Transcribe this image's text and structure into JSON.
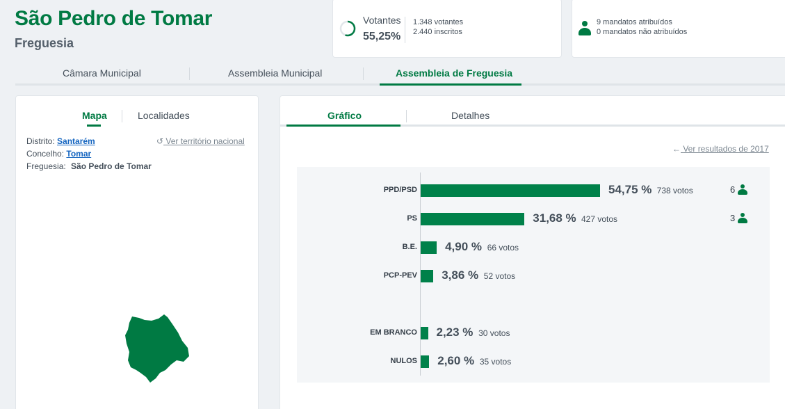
{
  "header": {
    "title": "São Pedro de Tomar",
    "subtitle": "Freguesia"
  },
  "votes": {
    "label": "Votantes",
    "percent": "55,25%",
    "voters": "1.348 votantes",
    "registered": "2.440 inscritos",
    "ring_fraction": 0.5525
  },
  "mandates": {
    "assigned": "9 mandatos atribuídos",
    "unassigned": "0 mandatos não atribuídos"
  },
  "tabs": [
    "Câmara Municipal",
    "Assembleia Municipal",
    "Assembleia de Freguesia"
  ],
  "left_panel": {
    "tabs": [
      "Mapa",
      "Localidades"
    ],
    "distrito_label": "Distrito:",
    "distrito_value": "Santarém",
    "concelho_label": "Concelho:",
    "concelho_value": "Tomar",
    "freguesia_label": "Freguesia:",
    "freguesia_value": "São Pedro de Tomar",
    "national_link": "Ver território nacional"
  },
  "right_panel": {
    "tabs": [
      "Gráfico",
      "Detalhes"
    ],
    "previous_link": "Ver resultados de 2017"
  },
  "colors": {
    "brand": "#007a43",
    "bar": "#00814a"
  },
  "chart_data": {
    "type": "bar",
    "orientation": "horizontal",
    "categories": [
      "PPD/PSD",
      "PS",
      "B.E.",
      "PCP-PEV",
      "EM BRANCO",
      "NULOS"
    ],
    "values": [
      54.75,
      31.68,
      4.9,
      3.86,
      2.23,
      2.6
    ],
    "value_labels": [
      "54,75 %",
      "31,68 %",
      "4,90 %",
      "3,86 %",
      "2,23 %",
      "2,60 %"
    ],
    "votes": [
      "738 votos",
      "427 votos",
      "66 votos",
      "52 votos",
      "30 votos",
      "35 votos"
    ],
    "seats": [
      "6",
      "3",
      "",
      "",
      "",
      ""
    ],
    "xlim": [
      0,
      100
    ]
  }
}
